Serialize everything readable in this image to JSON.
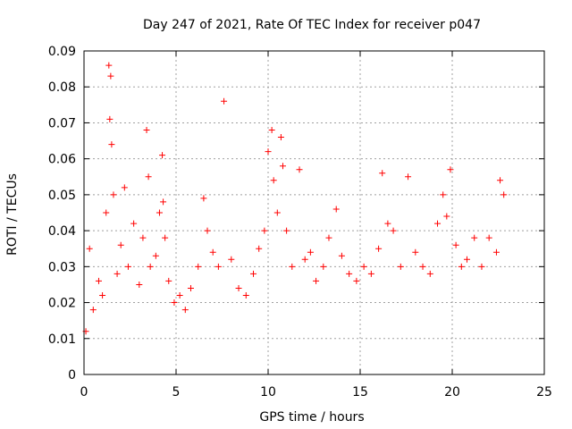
{
  "chart_data": {
    "type": "scatter",
    "title": "Day 247 of 2021, Rate Of TEC Index for receiver p047",
    "xlabel": "GPS time / hours",
    "ylabel": "ROTI / TECUs",
    "xlim": [
      0,
      25
    ],
    "ylim": [
      0,
      0.09
    ],
    "x_ticks": [
      "0",
      "5",
      "10",
      "15",
      "20",
      "25"
    ],
    "y_ticks": [
      "0",
      "0.01",
      "0.02",
      "0.03",
      "0.04",
      "0.05",
      "0.06",
      "0.07",
      "0.08",
      "0.09"
    ],
    "grid": true,
    "marker": "+",
    "color": "#ff0000",
    "series": [
      {
        "x": [
          0.1,
          0.3,
          0.5,
          0.8,
          1.0,
          1.2,
          1.35,
          1.4,
          1.45,
          1.5,
          1.6,
          1.8,
          2.0,
          2.2,
          2.4,
          2.7,
          3.0,
          3.2,
          3.4,
          3.5,
          3.6,
          3.9,
          4.1,
          4.25,
          4.3,
          4.4,
          4.6,
          4.9,
          5.2,
          5.5,
          5.8,
          6.2,
          6.5,
          6.7,
          7.0,
          7.3,
          7.6,
          8.0,
          8.4,
          8.8,
          9.2,
          9.5,
          9.8,
          10.0,
          10.2,
          10.3,
          10.5,
          10.7,
          10.8,
          11.0,
          11.3,
          11.7,
          12.0,
          12.3,
          12.6,
          13.0,
          13.3,
          13.7,
          14.0,
          14.4,
          14.8,
          15.2,
          15.6,
          16.0,
          16.2,
          16.5,
          16.8,
          17.2,
          17.6,
          18.0,
          18.4,
          18.8,
          19.2,
          19.5,
          19.7,
          19.9,
          20.2,
          20.5,
          20.8,
          21.2,
          21.6,
          22.0,
          22.4,
          22.6,
          22.8
        ],
        "y": [
          0.012,
          0.035,
          0.018,
          0.026,
          0.022,
          0.045,
          0.086,
          0.071,
          0.083,
          0.064,
          0.05,
          0.028,
          0.036,
          0.052,
          0.03,
          0.042,
          0.025,
          0.038,
          0.068,
          0.055,
          0.03,
          0.033,
          0.045,
          0.061,
          0.048,
          0.038,
          0.026,
          0.02,
          0.022,
          0.018,
          0.024,
          0.03,
          0.049,
          0.04,
          0.034,
          0.03,
          0.076,
          0.032,
          0.024,
          0.022,
          0.028,
          0.035,
          0.04,
          0.062,
          0.068,
          0.054,
          0.045,
          0.066,
          0.058,
          0.04,
          0.03,
          0.057,
          0.032,
          0.034,
          0.026,
          0.03,
          0.038,
          0.046,
          0.033,
          0.028,
          0.026,
          0.03,
          0.028,
          0.035,
          0.056,
          0.042,
          0.04,
          0.03,
          0.055,
          0.034,
          0.03,
          0.028,
          0.042,
          0.05,
          0.044,
          0.057,
          0.036,
          0.03,
          0.032,
          0.038,
          0.03,
          0.038,
          0.034,
          0.054,
          0.05
        ]
      }
    ]
  }
}
